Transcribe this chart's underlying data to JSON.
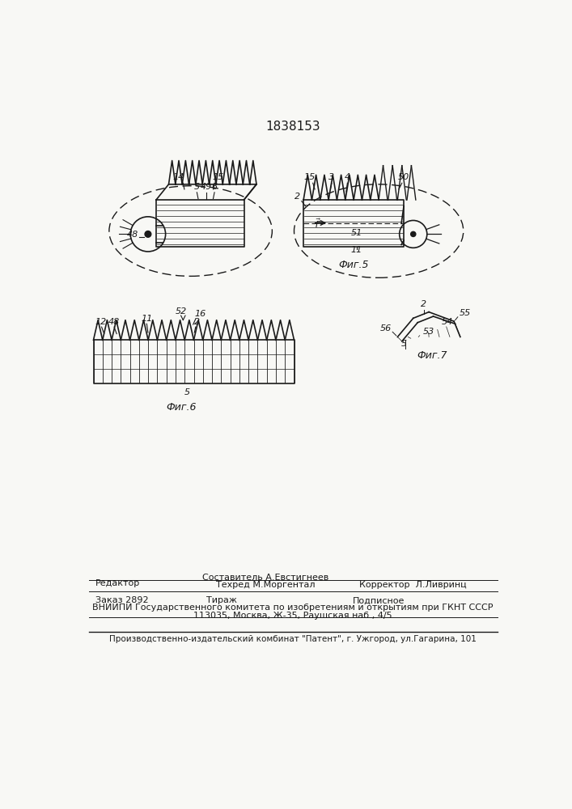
{
  "patent_number": "1838153",
  "background_color": "#f8f8f5",
  "line_color": "#1a1a1a",
  "footer_block2": "ВНИИПИ Государственного комитета по изобретениям и открытиям при ГКНТ СССР",
  "footer_block3": "113035, Москва, Ж-35, Раушская наб., 4/5",
  "footer_last": "Производственно-издательский комбинат \"Патент\", г. Ужгород, ул.Гагарина, 101",
  "fig5_label": "Фиг.5",
  "fig6_label": "Фиг.6",
  "fig7_label": "Фиг.7"
}
